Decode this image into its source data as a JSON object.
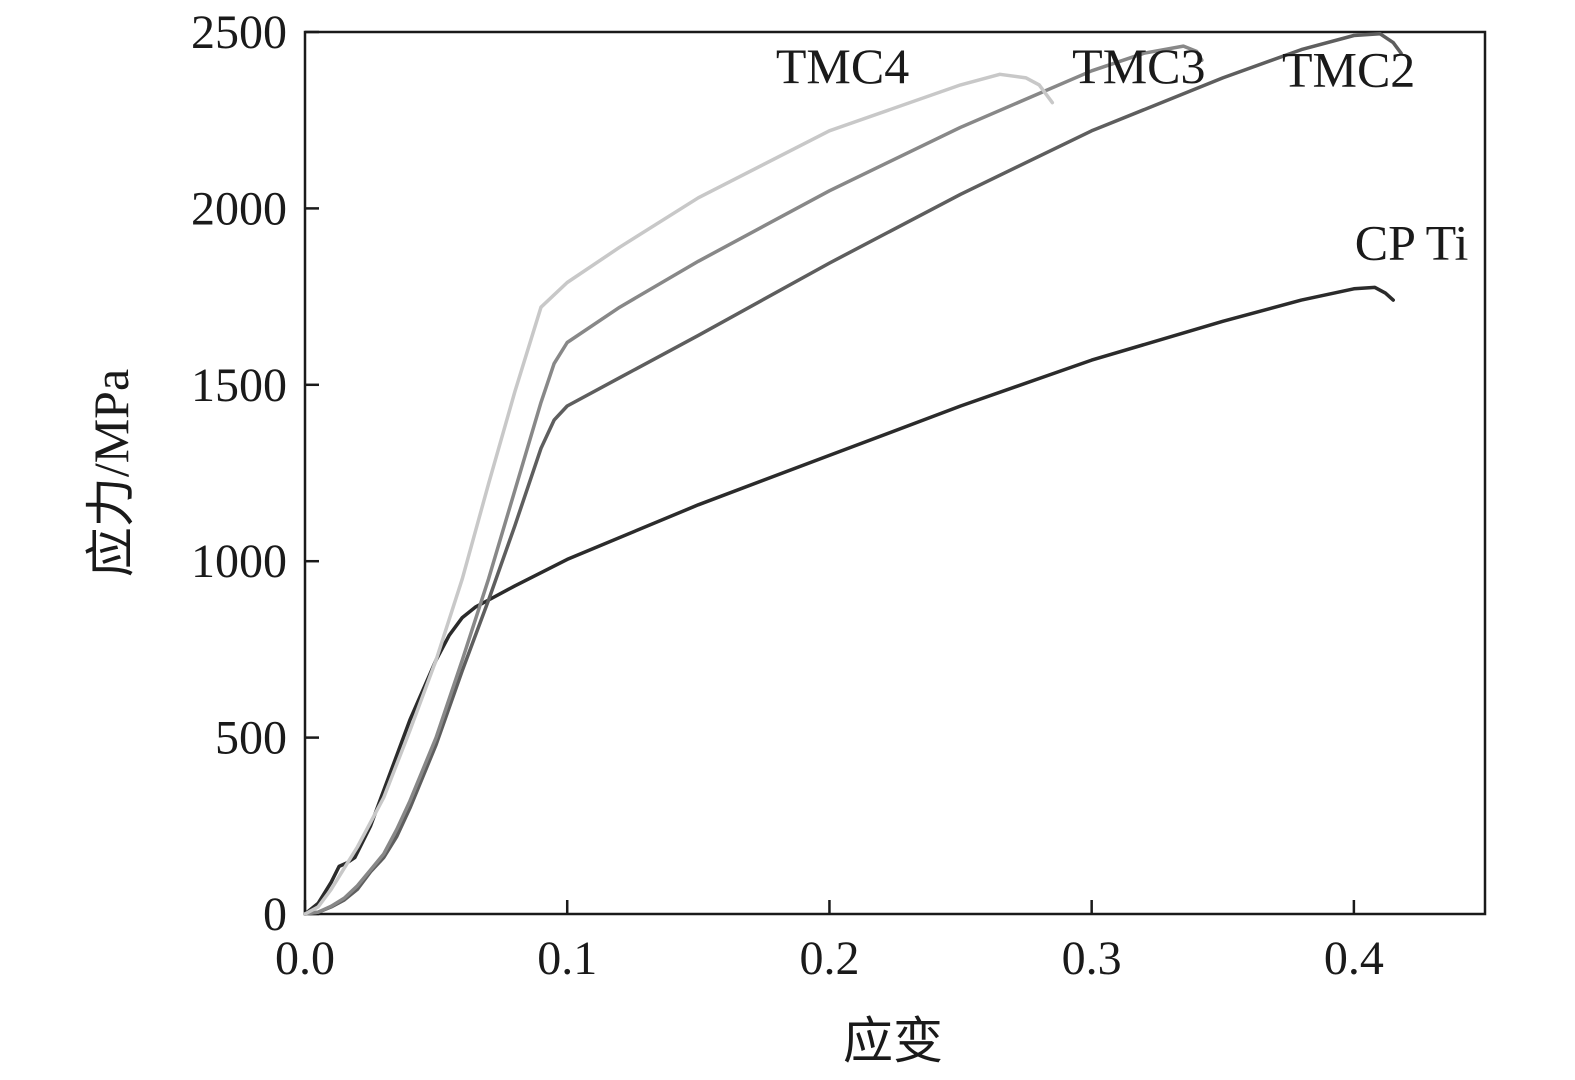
{
  "chart_data": {
    "type": "line",
    "xlabel": "应变",
    "ylabel": "应力/MPa",
    "xlim": [
      0,
      0.45
    ],
    "ylim": [
      0,
      2500
    ],
    "xticks": [
      0.0,
      0.1,
      0.2,
      0.3,
      0.4
    ],
    "xtick_labels": [
      "0.0",
      "0.1",
      "0.2",
      "0.3",
      "0.4"
    ],
    "yticks": [
      0,
      500,
      1000,
      1500,
      2000,
      2500
    ],
    "ytick_labels": [
      "0",
      "500",
      "1000",
      "1500",
      "2000",
      "2500"
    ],
    "grid": false,
    "legend": "inline labels at curve ends",
    "series": [
      {
        "name": "CP Ti",
        "color": "#2b2b2b",
        "points": [
          [
            0,
            0
          ],
          [
            0.005,
            30
          ],
          [
            0.01,
            90
          ],
          [
            0.013,
            135
          ],
          [
            0.016,
            145
          ],
          [
            0.019,
            160
          ],
          [
            0.025,
            250
          ],
          [
            0.03,
            350
          ],
          [
            0.04,
            550
          ],
          [
            0.05,
            720
          ],
          [
            0.055,
            790
          ],
          [
            0.06,
            840
          ],
          [
            0.065,
            870
          ],
          [
            0.07,
            890
          ],
          [
            0.08,
            930
          ],
          [
            0.1,
            1005
          ],
          [
            0.15,
            1160
          ],
          [
            0.2,
            1300
          ],
          [
            0.25,
            1440
          ],
          [
            0.3,
            1570
          ],
          [
            0.35,
            1680
          ],
          [
            0.38,
            1740
          ],
          [
            0.4,
            1772
          ],
          [
            0.408,
            1776
          ],
          [
            0.412,
            1760
          ],
          [
            0.415,
            1740
          ]
        ]
      },
      {
        "name": "TMC2",
        "color": "#5e5e5e",
        "points": [
          [
            0,
            0
          ],
          [
            0.005,
            5
          ],
          [
            0.01,
            20
          ],
          [
            0.015,
            40
          ],
          [
            0.02,
            70
          ],
          [
            0.025,
            120
          ],
          [
            0.03,
            160
          ],
          [
            0.035,
            220
          ],
          [
            0.04,
            300
          ],
          [
            0.05,
            480
          ],
          [
            0.06,
            690
          ],
          [
            0.07,
            890
          ],
          [
            0.08,
            1100
          ],
          [
            0.09,
            1320
          ],
          [
            0.095,
            1400
          ],
          [
            0.1,
            1440
          ],
          [
            0.12,
            1520
          ],
          [
            0.15,
            1640
          ],
          [
            0.2,
            1845
          ],
          [
            0.25,
            2040
          ],
          [
            0.3,
            2220
          ],
          [
            0.35,
            2370
          ],
          [
            0.38,
            2450
          ],
          [
            0.4,
            2490
          ],
          [
            0.41,
            2495
          ],
          [
            0.415,
            2470
          ],
          [
            0.418,
            2440
          ]
        ]
      },
      {
        "name": "TMC3",
        "color": "#888888",
        "points": [
          [
            0,
            0
          ],
          [
            0.005,
            5
          ],
          [
            0.01,
            22
          ],
          [
            0.015,
            45
          ],
          [
            0.02,
            80
          ],
          [
            0.025,
            125
          ],
          [
            0.03,
            170
          ],
          [
            0.035,
            240
          ],
          [
            0.04,
            320
          ],
          [
            0.05,
            500
          ],
          [
            0.06,
            720
          ],
          [
            0.07,
            950
          ],
          [
            0.08,
            1200
          ],
          [
            0.09,
            1450
          ],
          [
            0.095,
            1560
          ],
          [
            0.1,
            1620
          ],
          [
            0.12,
            1720
          ],
          [
            0.15,
            1850
          ],
          [
            0.2,
            2050
          ],
          [
            0.25,
            2230
          ],
          [
            0.3,
            2390
          ],
          [
            0.32,
            2440
          ],
          [
            0.335,
            2460
          ],
          [
            0.34,
            2445
          ],
          [
            0.342,
            2420
          ]
        ]
      },
      {
        "name": "TMC4",
        "color": "#c8c8c8",
        "points": [
          [
            0,
            0
          ],
          [
            0.005,
            20
          ],
          [
            0.01,
            70
          ],
          [
            0.015,
            130
          ],
          [
            0.02,
            190
          ],
          [
            0.03,
            330
          ],
          [
            0.04,
            520
          ],
          [
            0.05,
            720
          ],
          [
            0.06,
            950
          ],
          [
            0.07,
            1220
          ],
          [
            0.08,
            1480
          ],
          [
            0.09,
            1720
          ],
          [
            0.1,
            1790
          ],
          [
            0.12,
            1890
          ],
          [
            0.15,
            2030
          ],
          [
            0.2,
            2220
          ],
          [
            0.25,
            2350
          ],
          [
            0.265,
            2380
          ],
          [
            0.275,
            2370
          ],
          [
            0.28,
            2350
          ],
          [
            0.285,
            2300
          ]
        ]
      }
    ],
    "annotations": [
      {
        "text": "TMC4",
        "x": 0.205,
        "y": 2355
      },
      {
        "text": "TMC3",
        "x": 0.318,
        "y": 2355
      },
      {
        "text": "TMC2",
        "x": 0.398,
        "y": 2345
      },
      {
        "text": "CP Ti",
        "x": 0.422,
        "y": 1855
      }
    ]
  }
}
